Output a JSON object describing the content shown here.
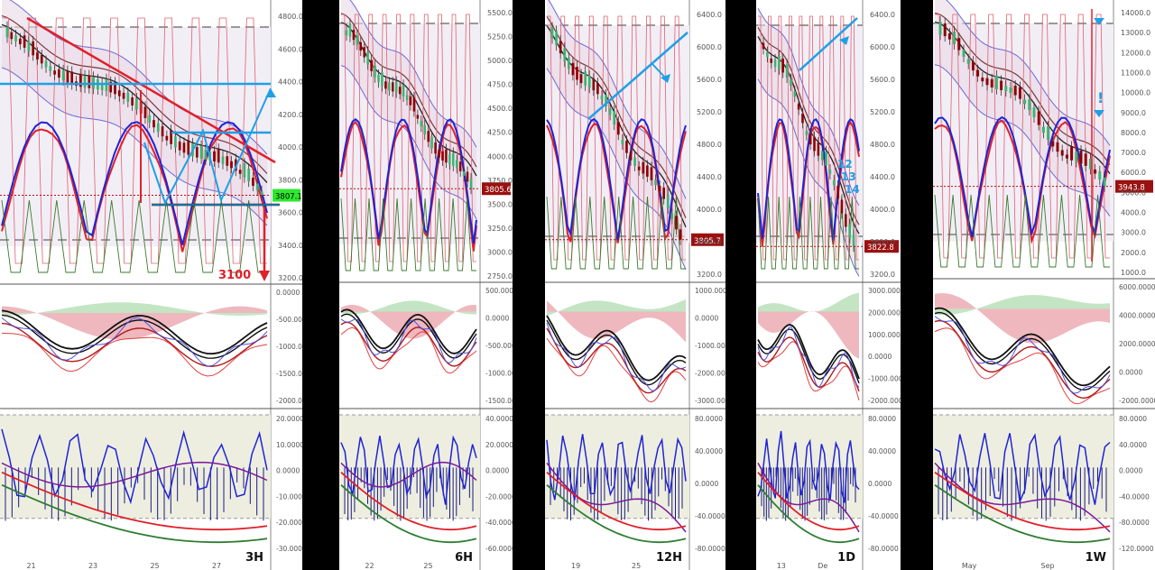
{
  "colors": {
    "up": "#3cb371",
    "down": "#8b0000",
    "blue": "#1f24d6",
    "red": "#e0202a",
    "green": "#2e7d32",
    "annot": "#1ea0e6",
    "annot_red": "#e0202a",
    "purple": "#6a1b9a"
  },
  "panels": [
    {
      "label": "3H",
      "price_ticks": [
        "4800.0",
        "4600.0",
        "4400.0",
        "4200.0",
        "4000.0",
        "3800.0",
        "3600.0",
        "3400.0",
        "3200.0"
      ],
      "price_tag": "3807.1",
      "osc_ticks": [
        "0.0000",
        "-500.0000",
        "-1000.0000",
        "-1500.0000",
        "-2000.0000"
      ],
      "mom_ticks": [
        "20.0000",
        "10.0000",
        "0.0000",
        "-10.0000",
        "-20.0000",
        "-30.0000"
      ],
      "date_ticks": [
        "21",
        "23",
        "25",
        "27"
      ],
      "annotation": "3100"
    },
    {
      "label": "6H",
      "price_ticks": [
        "5500.0",
        "5250.0",
        "5000.0",
        "4750.0",
        "4500.0",
        "4250.0",
        "4000.0",
        "3750.0",
        "3500.0",
        "3250.0",
        "3000.0",
        "2750.0"
      ],
      "price_tag": "3805.6",
      "osc_ticks": [
        "500.0000",
        "0.0000",
        "-500.0000",
        "-1000.0000",
        "-1500.0000"
      ],
      "mom_ticks": [
        "40.0000",
        "20.0000",
        "0.0000",
        "-20.0000",
        "-40.0000",
        "-60.0000"
      ],
      "date_ticks": [
        "22",
        "25"
      ]
    },
    {
      "label": "12H",
      "price_ticks": [
        "6400.0",
        "6000.0",
        "5600.0",
        "5200.0",
        "4800.0",
        "4400.0",
        "4000.0",
        "3600.0",
        "3200.0"
      ],
      "price_tag": "3805.7",
      "osc_ticks": [
        "1000.0000",
        "0.0000",
        "-1000.0000",
        "-2000.0000",
        "-3000.0000"
      ],
      "mom_ticks": [
        "80.0000",
        "40.0000",
        "0.0000",
        "-40.0000",
        "-80.0000"
      ],
      "date_ticks": [
        "19",
        "25"
      ]
    },
    {
      "label": "1D",
      "price_ticks": [
        "6400.0",
        "6000.0",
        "5600.0",
        "5200.0",
        "4800.0",
        "4400.0",
        "4000.0",
        "3600.0",
        "3200.0"
      ],
      "price_tag": "3822.8",
      "osc_ticks": [
        "3000.0000",
        "2000.0000",
        "1000.0000",
        "0.0000",
        "-1000.0000",
        "-2000.0000"
      ],
      "mom_ticks": [
        "80.0000",
        "40.0000",
        "0.0000",
        "-40.0000",
        "-80.0000"
      ],
      "date_ticks": [
        "13",
        "De"
      ],
      "count_labels": [
        "12",
        "13",
        "14"
      ]
    },
    {
      "label": "1W",
      "price_ticks": [
        "14000.0",
        "13000.0",
        "12000.0",
        "11000.0",
        "10000.0",
        "9000.0",
        "8000.0",
        "7000.0",
        "6000.0",
        "5000.0",
        "4000.0",
        "3000.0",
        "2000.0",
        "1000.0"
      ],
      "price_tag": "3943.8",
      "osc_ticks": [
        "6000.0000",
        "4000.0000",
        "2000.0000",
        "0.0000",
        "-2000.0000"
      ],
      "mom_ticks": [
        "80.0000",
        "40.0000",
        "0.0000",
        "-40.0000",
        "-80.0000",
        "-120.0000"
      ],
      "date_ticks": [
        "May",
        "Sep"
      ]
    }
  ],
  "chart_data": {
    "type": "line",
    "title": "",
    "timeframes": [
      "3H",
      "6H",
      "12H",
      "1D",
      "1W"
    ],
    "last_prices": [
      3807.1,
      3805.6,
      3805.7,
      3822.8,
      3943.8
    ],
    "annotation_target": 3100
  }
}
